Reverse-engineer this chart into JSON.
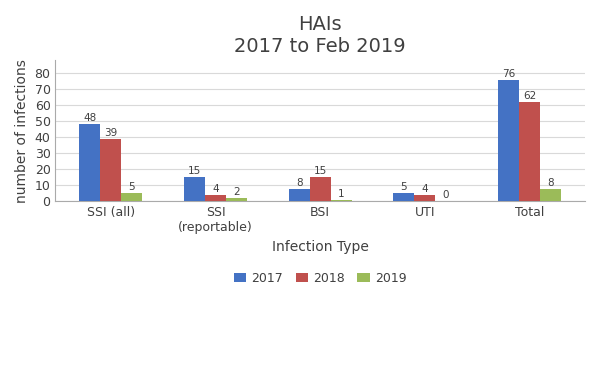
{
  "title": "HAIs\n2017 to Feb 2019",
  "xlabel": "Infection Type",
  "ylabel": "number of infections",
  "categories": [
    "SSI (all)",
    "SSI\n(reportable)",
    "BSI",
    "UTI",
    "Total"
  ],
  "series": {
    "2017": [
      48,
      15,
      8,
      5,
      76
    ],
    "2018": [
      39,
      4,
      15,
      4,
      62
    ],
    "2019": [
      5,
      2,
      1,
      0,
      8
    ]
  },
  "colors": {
    "2017": "#4472C4",
    "2018": "#C0504D",
    "2019": "#9BBB59"
  },
  "ylim": [
    0,
    88
  ],
  "yticks": [
    0,
    10,
    20,
    30,
    40,
    50,
    60,
    70,
    80
  ],
  "bar_width": 0.2,
  "legend_labels": [
    "2017",
    "2018",
    "2019"
  ],
  "title_fontsize": 14,
  "label_fontsize": 10,
  "tick_fontsize": 9,
  "value_fontsize": 7.5,
  "background_color": "#ffffff",
  "ax_background_color": "#ffffff",
  "grid_color": "#d9d9d9",
  "title_color": "#404040",
  "text_color": "#404040"
}
